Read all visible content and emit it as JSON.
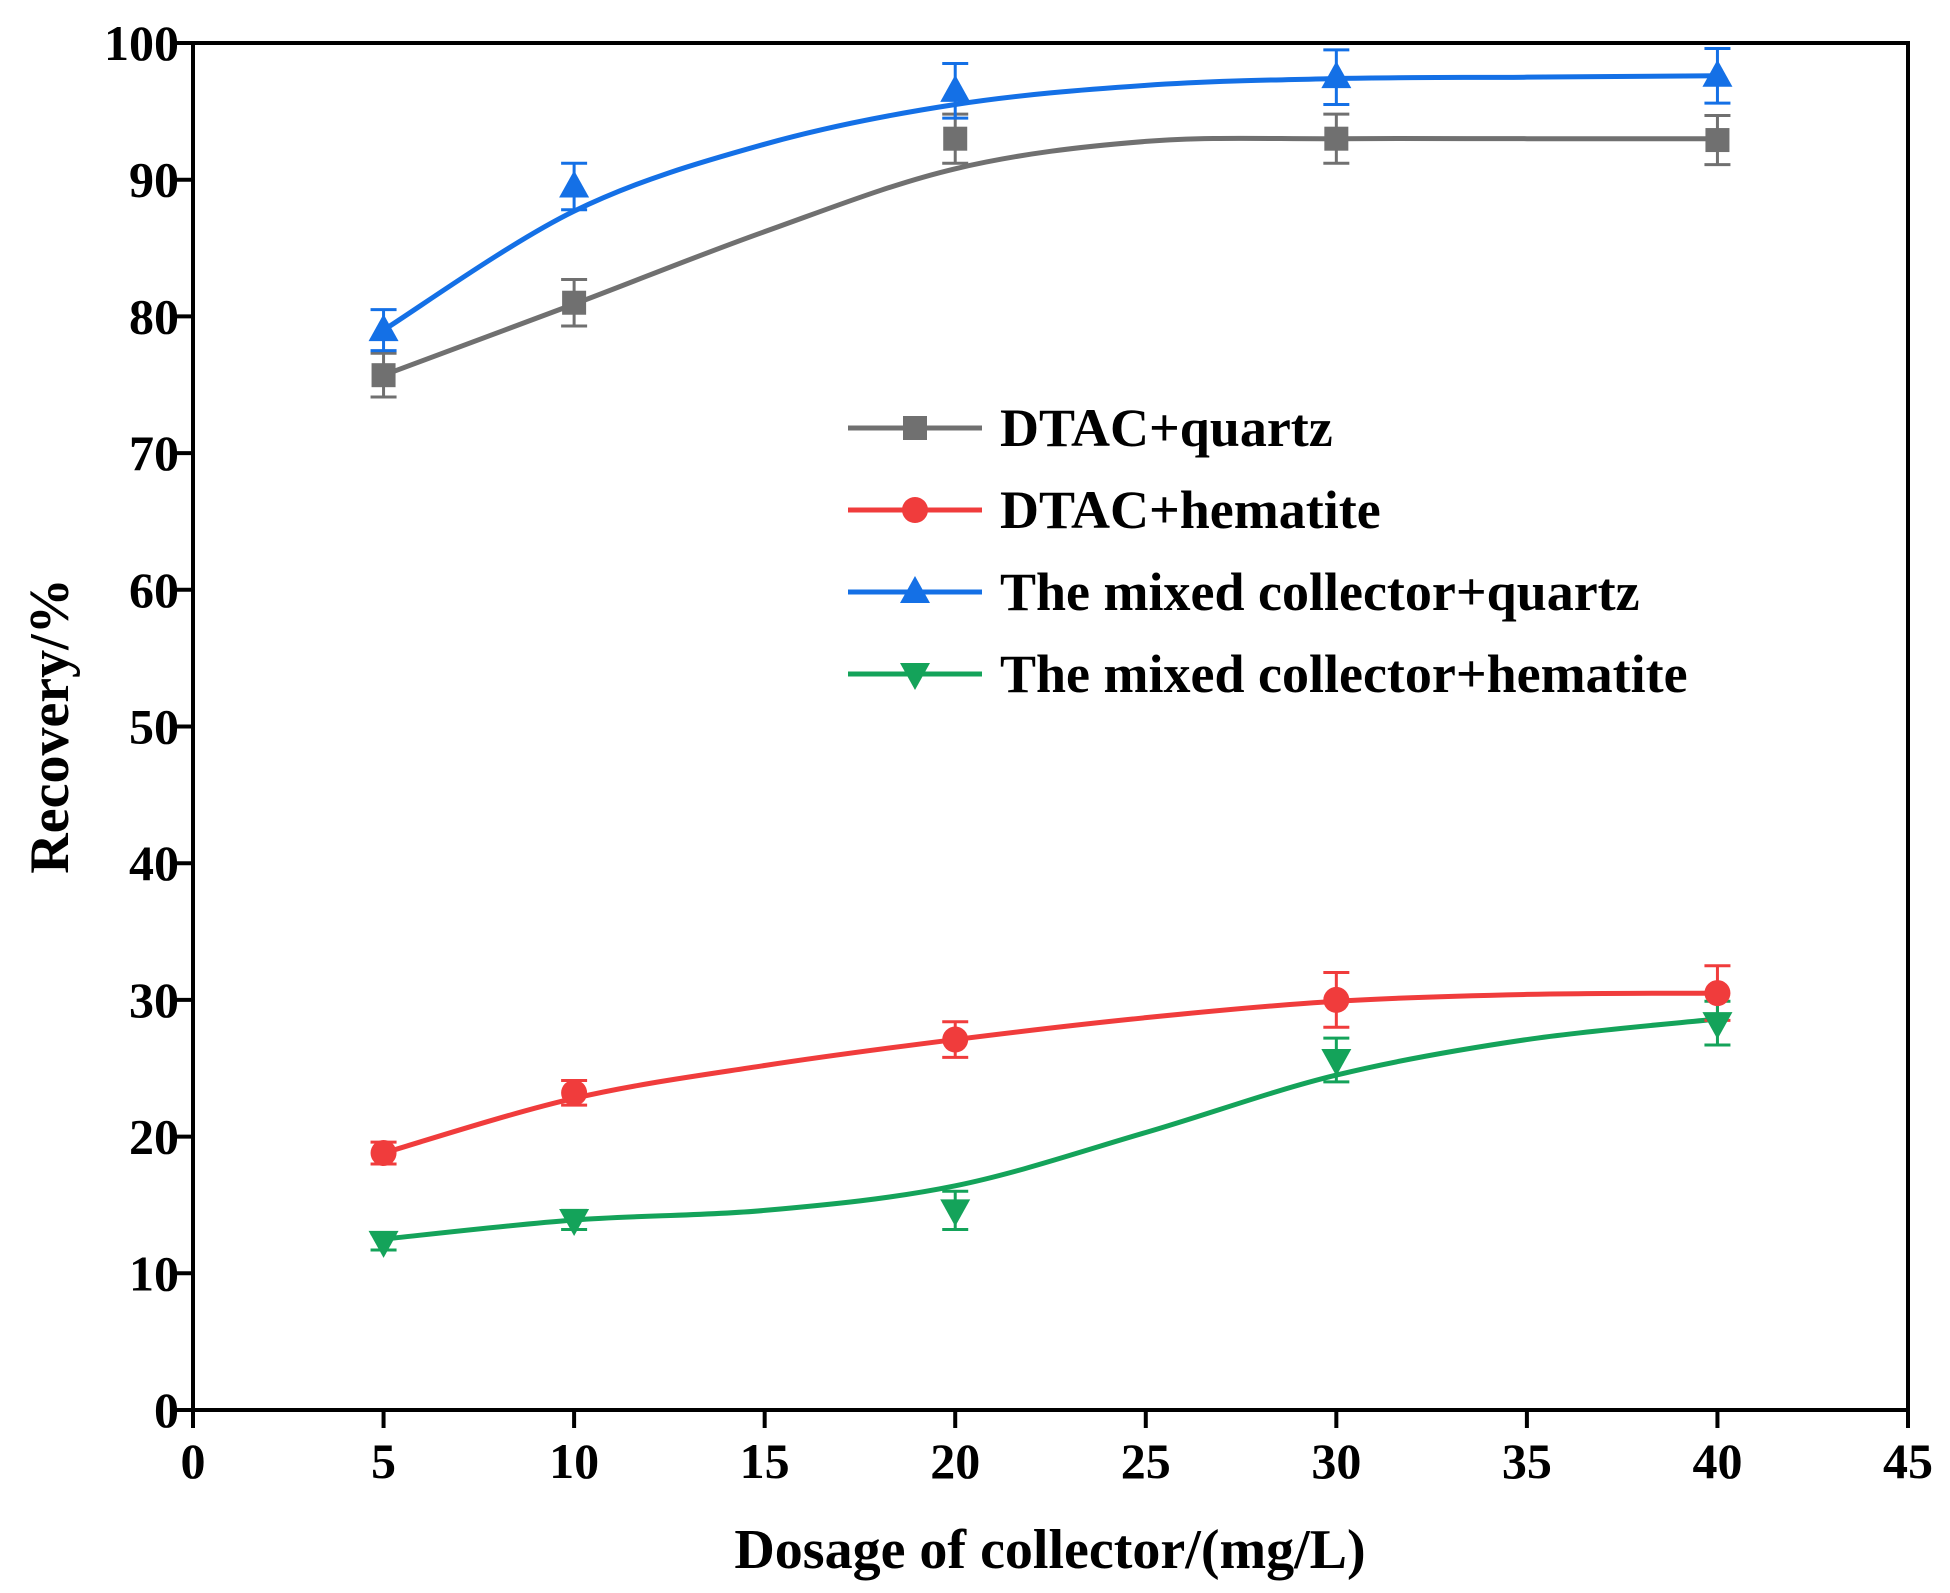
{
  "chart_data": {
    "type": "line",
    "title": "",
    "xlabel": "Dosage of collector/(mg/L)",
    "ylabel": "Recovery/%",
    "xlim": [
      0,
      45
    ],
    "ylim": [
      0,
      100
    ],
    "xticks": [
      0,
      5,
      10,
      15,
      20,
      25,
      30,
      35,
      40,
      45
    ],
    "yticks": [
      0,
      10,
      20,
      30,
      40,
      50,
      60,
      70,
      80,
      90,
      100
    ],
    "x": [
      5,
      10,
      20,
      30,
      40
    ],
    "legend_position": "upper-right inside plot",
    "series": [
      {
        "name": "DTAC+quartz",
        "marker": "square",
        "color": "#707070",
        "values": [
          75.7,
          81.0,
          93.0,
          93.0,
          92.9
        ],
        "errors": [
          1.6,
          1.7,
          1.8,
          1.8,
          1.8
        ],
        "fit": [
          [
            5,
            75.7
          ],
          [
            10,
            80.9
          ],
          [
            15,
            86.2
          ],
          [
            20,
            90.8
          ],
          [
            25,
            92.8
          ],
          [
            30,
            93.0
          ],
          [
            35,
            93.0
          ],
          [
            40,
            93.0
          ]
        ]
      },
      {
        "name": "DTAC+hematite",
        "marker": "circle",
        "color": "#f03c3c",
        "values": [
          18.8,
          23.2,
          27.1,
          30.0,
          30.5
        ],
        "errors": [
          0.8,
          0.9,
          1.3,
          2.0,
          2.0
        ],
        "fit": [
          [
            5,
            18.8
          ],
          [
            10,
            22.8
          ],
          [
            15,
            25.2
          ],
          [
            20,
            27.1
          ],
          [
            25,
            28.7
          ],
          [
            30,
            29.9
          ],
          [
            35,
            30.4
          ],
          [
            40,
            30.5
          ]
        ]
      },
      {
        "name": "The mixed collector+quartz",
        "marker": "triangle-up",
        "color": "#1470e6",
        "values": [
          79.0,
          89.5,
          96.5,
          97.5,
          97.6
        ],
        "errors": [
          1.5,
          1.7,
          2.0,
          2.0,
          2.0
        ],
        "fit": [
          [
            5,
            79.0
          ],
          [
            10,
            87.7
          ],
          [
            15,
            92.6
          ],
          [
            20,
            95.5
          ],
          [
            25,
            96.9
          ],
          [
            30,
            97.4
          ],
          [
            35,
            97.5
          ],
          [
            40,
            97.6
          ]
        ]
      },
      {
        "name": "The mixed collector+hematite",
        "marker": "triangle-down",
        "color": "#14a35a",
        "values": [
          12.3,
          13.9,
          14.6,
          25.6,
          28.3
        ],
        "errors": [
          0.6,
          0.7,
          1.4,
          1.6,
          1.6
        ],
        "fit": [
          [
            5,
            12.5
          ],
          [
            10,
            13.9
          ],
          [
            15,
            14.6
          ],
          [
            20,
            16.4
          ],
          [
            25,
            20.3
          ],
          [
            30,
            24.5
          ],
          [
            35,
            27.1
          ],
          [
            40,
            28.6
          ]
        ]
      }
    ]
  }
}
